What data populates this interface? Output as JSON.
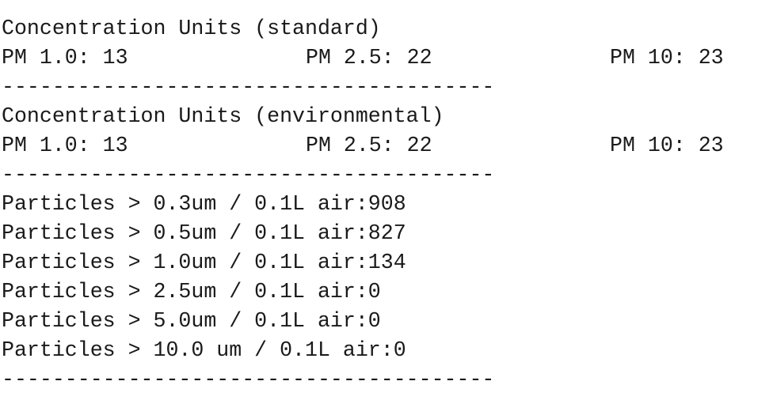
{
  "separator": "---------------------------------------",
  "standard": {
    "heading": "Concentration Units (standard)",
    "pm1": "PM 1.0: 13",
    "pm25": "PM 2.5: 22",
    "pm10": "PM 10: 23"
  },
  "environmental": {
    "heading": "Concentration Units (environmental)",
    "pm1": "PM 1.0: 13",
    "pm25": "PM 2.5: 22",
    "pm10": "PM 10: 23"
  },
  "particles": [
    "Particles > 0.3um / 0.1L air:908",
    "Particles > 0.5um / 0.1L air:827",
    "Particles > 1.0um / 0.1L air:134",
    "Particles > 2.5um / 0.1L air:0",
    "Particles > 5.0um / 0.1L air:0",
    "Particles > 10.0 um / 0.1L air:0"
  ]
}
